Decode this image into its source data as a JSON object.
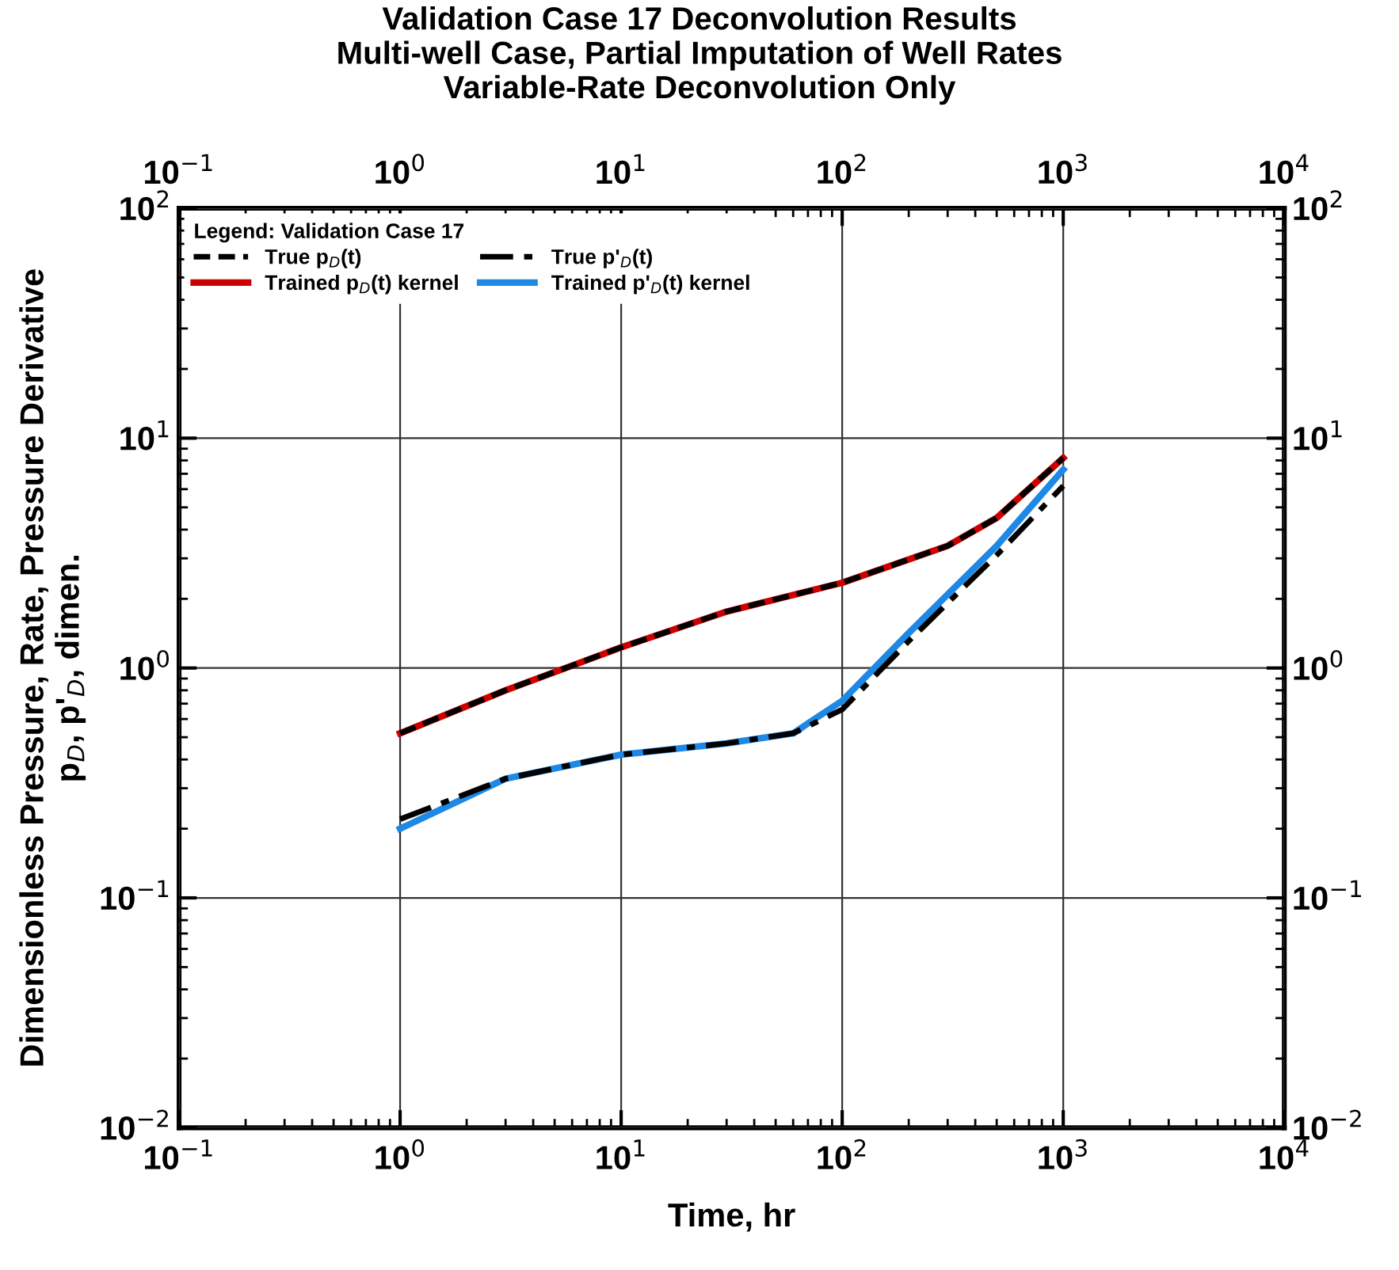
{
  "chart_data": {
    "type": "line",
    "title": "Validation Case 17 Deconvolution Results\nMulti-well Case, Partial Imputation of Well Rates\nVariable-Rate Deconvolution Only",
    "xlabel": "Time, hr",
    "ylabel": "Dimensionless Pressure, Rate, Pressure Derivative\np$_{D}$, p'$_{D}$, dimen.",
    "legend_title": "Legend: Validation Case 17",
    "legend": "top left",
    "log": "xy",
    "grid": true,
    "xlim": [
      0.1,
      10000
    ],
    "ylim": [
      0.01,
      100
    ],
    "xticks": [
      {
        "value": 0.1,
        "label": "10$^{−1}$"
      },
      {
        "value": 1,
        "label": "10$^{0}$"
      },
      {
        "value": 10,
        "label": "10$^{1}$"
      },
      {
        "value": 100,
        "label": "10$^{2}$"
      },
      {
        "value": 1000,
        "label": "10$^{3}$"
      },
      {
        "value": 10000,
        "label": "10$^{4}$"
      }
    ],
    "yticks": [
      {
        "value": 0.01,
        "label": "10$^{−2}$"
      },
      {
        "value": 0.1,
        "label": "10$^{−1}$"
      },
      {
        "value": 1,
        "label": "10$^{0}$"
      },
      {
        "value": 10,
        "label": "10$^{1}$"
      },
      {
        "value": 100,
        "label": "10$^{2}$"
      }
    ],
    "series": [
      {
        "name": "Trained p$_{D}$(t) kernel",
        "color": "#cc0000",
        "line_style": "solid",
        "x": [
          1,
          3,
          10,
          30,
          100,
          300,
          500,
          1000
        ],
        "values": [
          0.52,
          0.8,
          1.23,
          1.76,
          2.35,
          3.4,
          4.5,
          8.2
        ]
      },
      {
        "name": "Trained p'$_{D}$(t) kernel",
        "color": "#1e88e5",
        "line_style": "solid",
        "x": [
          1,
          3,
          10,
          30,
          60,
          100,
          200,
          500,
          1000
        ],
        "values": [
          0.2,
          0.33,
          0.42,
          0.47,
          0.52,
          0.72,
          1.42,
          3.4,
          7.3
        ]
      },
      {
        "name": "True p$_{D}$(t)",
        "color": "#000000",
        "line_style": "dashed",
        "x": [
          1,
          3,
          10,
          30,
          100,
          300,
          500,
          1000
        ],
        "values": [
          0.52,
          0.8,
          1.23,
          1.76,
          2.35,
          3.4,
          4.5,
          8.2
        ]
      },
      {
        "name": "True p'$_{D}$(t)",
        "color": "#000000",
        "line_style": "dashdot",
        "x": [
          1,
          3,
          10,
          30,
          60,
          100,
          200,
          500,
          1000
        ],
        "values": [
          0.22,
          0.33,
          0.42,
          0.47,
          0.52,
          0.66,
          1.31,
          3.1,
          6.2
        ]
      }
    ]
  }
}
